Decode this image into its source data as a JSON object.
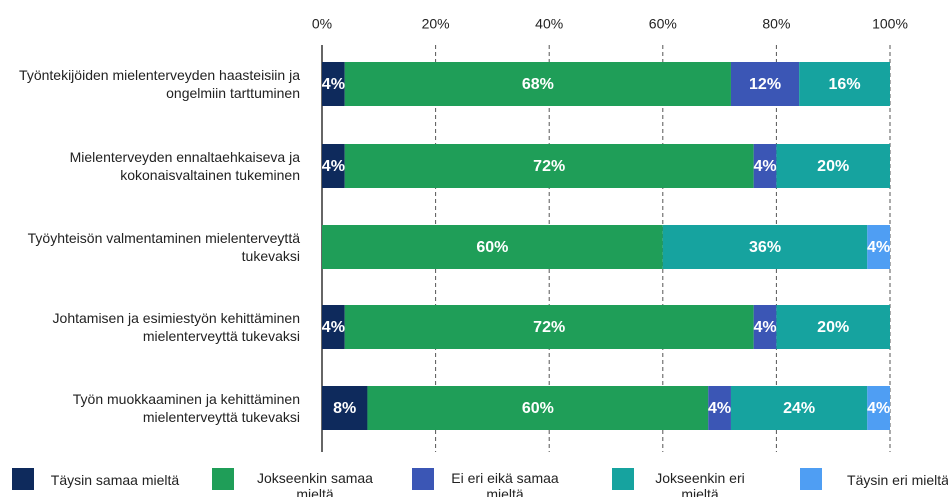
{
  "chart_data": {
    "type": "stacked-bar-horizontal",
    "categories": [
      "Työntekijöiden mielenterveyden haasteisiin ja ongelmiin tarttuminen",
      "Mielenterveyden ennaltaehkaiseva ja kokonaisvaltainen tukeminen",
      "Työyhteisön valmentaminen mielenterveyttä tukevaksi",
      "Johtamisen ja esimiestyön kehittäminen mielenterveyttä tukevaksi",
      "Työn muokkaaminen ja kehittäminen mielenterveyttä tukevaksi"
    ],
    "series": [
      {
        "name": "Täysin samaa mieltä",
        "color": "#0e2a5c",
        "values": [
          4,
          4,
          0,
          4,
          8
        ],
        "value_labels": [
          "4%",
          "4%",
          null,
          "4%",
          "8%"
        ]
      },
      {
        "name": "Jokseenkin samaa mieltä",
        "color": "#1f9e58",
        "values": [
          68,
          72,
          60,
          72,
          60
        ],
        "value_labels": [
          "68%",
          "72%",
          "60%",
          "72%",
          "60%"
        ]
      },
      {
        "name": "Ei eri eikä samaa mieltä",
        "color": "#3b56b5",
        "values": [
          12,
          4,
          0,
          4,
          4
        ],
        "value_labels": [
          "12%",
          "4%",
          null,
          "4%",
          "4%"
        ]
      },
      {
        "name": "Jokseenkin eri mieltä",
        "color": "#16a39f",
        "values": [
          16,
          20,
          36,
          20,
          24
        ],
        "value_labels": [
          "16%",
          "20%",
          "36%",
          "20%",
          "24%"
        ]
      },
      {
        "name": "Täysin eri mieltä",
        "color": "#4f9ef3",
        "values": [
          0,
          0,
          4,
          0,
          4
        ],
        "value_labels": [
          null,
          null,
          "4%",
          null,
          "4%"
        ]
      }
    ],
    "xlim": [
      0,
      100
    ],
    "xticks": [
      {
        "value": 0,
        "label": "0%"
      },
      {
        "value": 20,
        "label": "20%"
      },
      {
        "value": 40,
        "label": "40%"
      },
      {
        "value": 60,
        "label": "60%"
      },
      {
        "value": 80,
        "label": "80%"
      },
      {
        "value": 100,
        "label": "100%"
      }
    ],
    "grid": true,
    "legend": "bottom"
  }
}
